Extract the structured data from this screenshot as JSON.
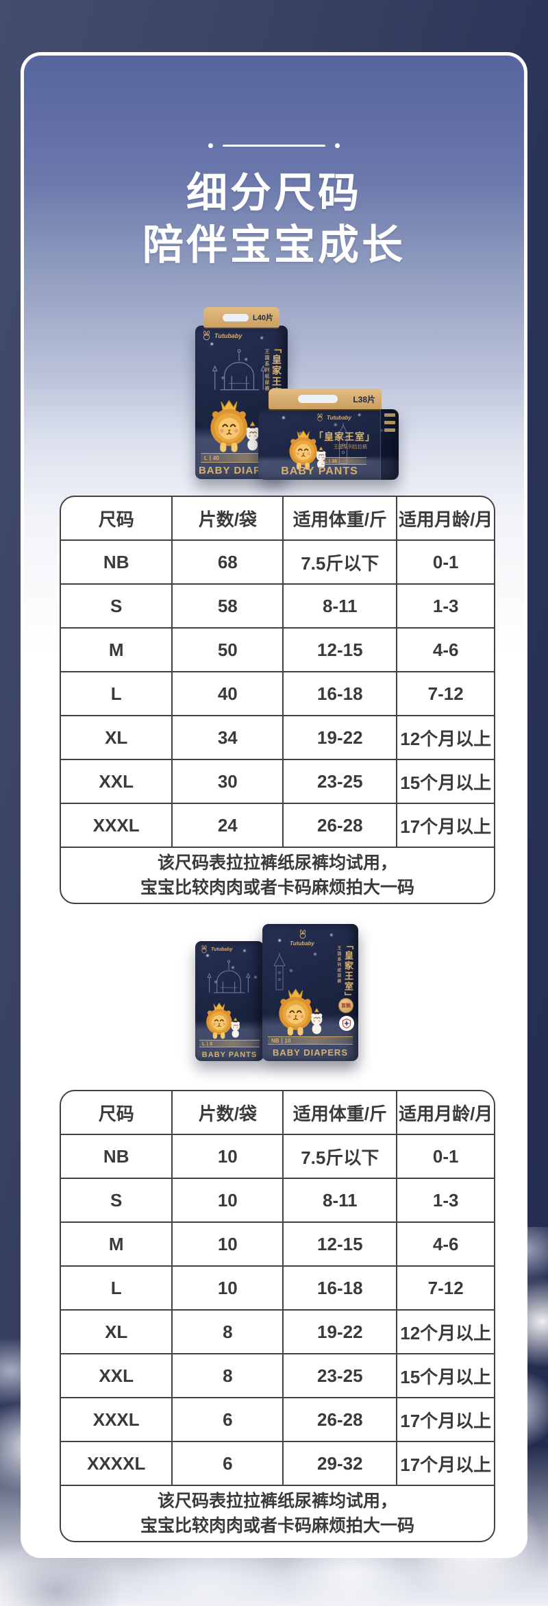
{
  "page": {
    "title_line1": "细分尺码",
    "title_line2": "陪伴宝宝成长"
  },
  "tables": [
    {
      "headers": [
        "尺码",
        "片数/袋",
        "适用体重/斤",
        "适用月龄/月"
      ],
      "rows": [
        [
          "NB",
          "68",
          "7.5斤以下",
          "0-1"
        ],
        [
          "S",
          "58",
          "8-11",
          "1-3"
        ],
        [
          "M",
          "50",
          "12-15",
          "4-6"
        ],
        [
          "L",
          "40",
          "16-18",
          "7-12"
        ],
        [
          "XL",
          "34",
          "19-22",
          "12个月以上"
        ],
        [
          "XXL",
          "30",
          "23-25",
          "15个月以上"
        ],
        [
          "XXXL",
          "24",
          "26-28",
          "17个月以上"
        ]
      ],
      "footnote_line1": "该尺码表拉拉裤纸尿裤均试用，",
      "footnote_line2": "宝宝比较肉肉或者卡码麻烦拍大一码"
    },
    {
      "headers": [
        "尺码",
        "片数/袋",
        "适用体重/斤",
        "适用月龄/月"
      ],
      "rows": [
        [
          "NB",
          "10",
          "7.5斤以下",
          "0-1"
        ],
        [
          "S",
          "10",
          "8-11",
          "1-3"
        ],
        [
          "M",
          "10",
          "12-15",
          "4-6"
        ],
        [
          "L",
          "10",
          "16-18",
          "7-12"
        ],
        [
          "XL",
          "8",
          "19-22",
          "12个月以上"
        ],
        [
          "XXL",
          "8",
          "23-25",
          "15个月以上"
        ],
        [
          "XXXL",
          "6",
          "26-28",
          "17个月以上"
        ],
        [
          "XXXXL",
          "6",
          "29-32",
          "17个月以上"
        ]
      ],
      "footnote_line1": "该尺码表拉拉裤纸尿裤均试用，",
      "footnote_line2": "宝宝比较肉肉或者卡码麻烦拍大一码"
    }
  ],
  "products": {
    "group1_back": {
      "handle_label": "L40片",
      "brand": "Tutubaby",
      "series": "「皇家王室」",
      "series_sub": "王国系列纸尿裤",
      "band_label": "L丨40",
      "product_name": "BABY DIAPERS"
    },
    "group1_front": {
      "handle_label": "L38片",
      "brand": "Tutubaby",
      "series": "「皇家王室」",
      "series_sub": "王国系列拉拉裤",
      "band_label": "L丨38",
      "product_name": "BABY PANTS"
    },
    "group2_back": {
      "brand": "Tutubaby",
      "band_label": "L丨8",
      "product_name": "BABY PANTS"
    },
    "group2_front": {
      "brand": "Tutubaby",
      "series": "「皇家王室」",
      "series_sub": "王国系列纸尿裤",
      "badge_first_touch": "首触",
      "band_label": "NB丨10",
      "product_name": "BABY DIAPERS"
    }
  },
  "colors": {
    "accent_gold": "#d9b06c",
    "package_navy": "#1b2440",
    "card_blue_top": "#56659e",
    "outer_navy": "#2a3457",
    "table_border": "#414141"
  }
}
